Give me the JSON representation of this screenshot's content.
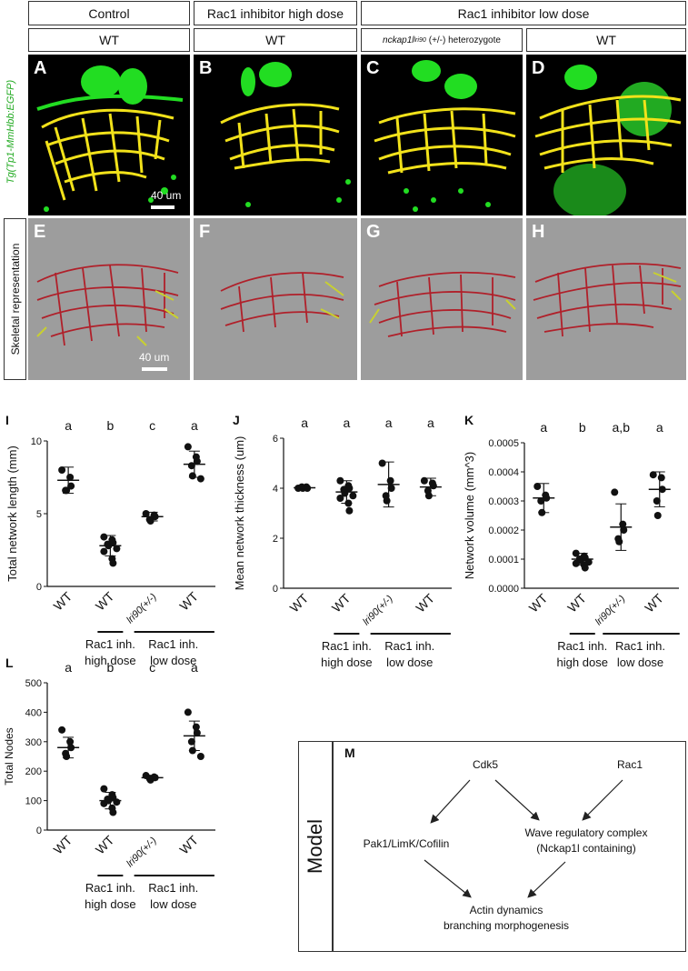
{
  "header": {
    "row1": [
      "Control",
      "Rac1 inhibitor high dose",
      "Rac1 inhibitor low dose"
    ],
    "row2": [
      "WT",
      "WT",
      "(+/-) heterozygote",
      "WT"
    ],
    "row2_gene": "nckap1l",
    "row2_sup": "lri90"
  },
  "side_labels": {
    "micro": "Tg(Tp1-MmHbb:EGFP)",
    "skeletal": "Skeletal representation",
    "model": "Model"
  },
  "panels": {
    "micro": [
      "A",
      "B",
      "C",
      "D"
    ],
    "skel": [
      "E",
      "F",
      "G",
      "H"
    ]
  },
  "scale": {
    "micro": "40 um",
    "skel": "40 um"
  },
  "colors": {
    "micro_bg": "#000000",
    "gfp": "#22dd22",
    "network": "#f2e21a",
    "skel_bg": "#9d9d9d",
    "skel_red": "#b0202a",
    "skel_yellow": "#c8d030"
  },
  "groups": {
    "xticks": [
      "WT",
      "WT",
      "lri90(+/-)",
      "WT"
    ],
    "high": [
      "Rac1 inh.",
      "high dose"
    ],
    "low": [
      "Rac1 inh.",
      "low dose"
    ]
  },
  "chart_data": [
    {
      "panel": "I",
      "type": "scatter",
      "ylabel": "Total network length (mm)",
      "ylim": [
        0,
        10
      ],
      "yticks": [
        "0",
        "5",
        "10"
      ],
      "categories": [
        "WT",
        "WT",
        "lri90(+/-)",
        "WT"
      ],
      "letters": [
        "a",
        "b",
        "c",
        "a"
      ],
      "means": [
        7.3,
        2.8,
        4.8,
        8.4
      ],
      "sd": [
        0.9,
        0.7,
        0.3,
        0.9
      ],
      "points": [
        [
          8.0,
          7.5,
          6.9,
          6.6,
          6.6
        ],
        [
          3.4,
          3.2,
          3.0,
          2.9,
          2.8,
          2.6,
          2.4,
          1.9,
          1.6
        ],
        [
          5.0,
          4.9,
          4.8,
          4.6,
          4.5
        ],
        [
          9.6,
          8.9,
          8.6,
          8.3,
          7.6,
          7.4
        ]
      ]
    },
    {
      "panel": "J",
      "type": "scatter",
      "ylabel": "Mean network thickness (um)",
      "ylim": [
        0,
        6
      ],
      "yticks": [
        "0",
        "2",
        "4",
        "6"
      ],
      "categories": [
        "WT",
        "WT",
        "lri90(+/-)",
        "WT"
      ],
      "letters": [
        "a",
        "a",
        "a",
        "a"
      ],
      "means": [
        4.02,
        3.85,
        4.15,
        4.05
      ],
      "sd": [
        0.07,
        0.45,
        0.9,
        0.35
      ],
      "points": [
        [
          4.0,
          4.05,
          4.0,
          4.05,
          4.0
        ],
        [
          4.3,
          4.1,
          4.0,
          3.95,
          3.8,
          3.7,
          3.6,
          3.4,
          3.1
        ],
        [
          5.0,
          4.3,
          4.0,
          3.7,
          3.5
        ],
        [
          4.3,
          4.2,
          4.1,
          3.9,
          3.7
        ]
      ]
    },
    {
      "panel": "K",
      "type": "scatter",
      "ylabel": "Network volume (mm^3)",
      "ylim": [
        0,
        0.0005
      ],
      "yticks": [
        "0.0000",
        "0.0001",
        "0.0002",
        "0.0003",
        "0.0004",
        "0.0005"
      ],
      "categories": [
        "WT",
        "WT",
        "lri90(+/-)",
        "WT"
      ],
      "letters": [
        "a",
        "b",
        "a,b",
        "a"
      ],
      "means": [
        0.00031,
        0.0001,
        0.00021,
        0.00034
      ],
      "sd": [
        5e-05,
        2e-05,
        8e-05,
        6e-05
      ],
      "points": [
        [
          0.00035,
          0.00032,
          0.00031,
          0.0003,
          0.00026
        ],
        [
          0.00012,
          0.00011,
          0.000105,
          0.0001,
          9.5e-05,
          9e-05,
          8.5e-05,
          8e-05,
          7e-05
        ],
        [
          0.00033,
          0.00022,
          0.0002,
          0.00017,
          0.00016
        ],
        [
          0.00039,
          0.00038,
          0.00034,
          0.0003,
          0.00025
        ]
      ]
    },
    {
      "panel": "L",
      "type": "scatter",
      "ylabel": "Total Nodes",
      "ylim": [
        0,
        500
      ],
      "yticks": [
        "0",
        "100",
        "200",
        "300",
        "400",
        "500"
      ],
      "categories": [
        "WT",
        "WT",
        "lri90(+/-)",
        "WT"
      ],
      "letters": [
        "a",
        "b",
        "c",
        "a"
      ],
      "means": [
        280,
        100,
        178,
        320
      ],
      "sd": [
        35,
        28,
        8,
        50
      ],
      "points": [
        [
          340,
          300,
          280,
          260,
          250
        ],
        [
          140,
          120,
          110,
          105,
          100,
          95,
          90,
          75,
          60
        ],
        [
          185,
          180,
          178,
          175,
          170
        ],
        [
          400,
          350,
          330,
          300,
          270,
          250
        ]
      ]
    }
  ],
  "model": {
    "label": "M",
    "cdk5": "Cdk5",
    "rac1": "Rac1",
    "pak": "Pak1/LimK/Cofilin",
    "wave1": "Wave regulatory complex",
    "wave2": "(Nckap1l containing)",
    "actin1": "Actin dynamics",
    "actin2": "branching morphogenesis"
  }
}
